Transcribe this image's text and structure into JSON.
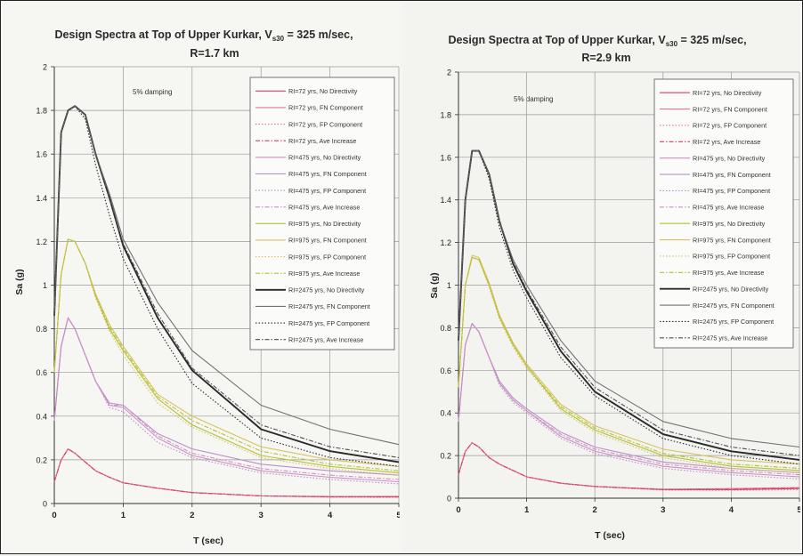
{
  "charts": [
    {
      "title_main": "Design  Spectra at Top of Upper Kurkar, V",
      "title_sub": "s30",
      "title_tail": " = 325 m/sec,",
      "title_line2": "R=1.7 km",
      "annotation": "5% damping",
      "xlabel": "T (sec)",
      "ylabel": "Sa (g)",
      "xticks": [
        "0",
        "1",
        "2",
        "3",
        "4",
        "5"
      ],
      "yticks": [
        "0",
        "0.2",
        "0.4",
        "0.6",
        "0.8",
        "1",
        "1.2",
        "1.4",
        "1.6",
        "1.8",
        "2"
      ]
    },
    {
      "title_main": "Design  Spectra at Top of Upper Kurkar, V",
      "title_sub": "s30",
      "title_tail": " = 325 m/sec,",
      "title_line2": "R=2.9 km",
      "annotation": "5% damping",
      "xlabel": "T (sec)",
      "ylabel": "Sa (g)",
      "xticks": [
        "0",
        "1",
        "2",
        "3",
        "4",
        "5"
      ],
      "yticks": [
        "0",
        "0.2",
        "0.4",
        "0.6",
        "0.8",
        "1",
        "1.2",
        "1.4",
        "1.6",
        "1.8",
        "2"
      ]
    }
  ],
  "chart_data": [
    {
      "type": "line",
      "title": "Design Spectra at Top of Upper Kurkar, Vs30 = 325 m/sec, R=1.7 km",
      "xlabel": "T (sec)",
      "ylabel": "Sa (g)",
      "xlim": [
        0,
        5
      ],
      "ylim": [
        0,
        2
      ],
      "grid": true,
      "legend_position": "top-right",
      "x": [
        0,
        0.1,
        0.2,
        0.3,
        0.45,
        0.6,
        0.8,
        1,
        1.5,
        2,
        3,
        4,
        5
      ],
      "series": [
        {
          "name": "RI=72 yrs, No Directivity",
          "color": "#d6406a",
          "dash": "solid",
          "values": [
            0.1,
            0.2,
            0.25,
            0.23,
            0.19,
            0.15,
            0.12,
            0.095,
            0.07,
            0.05,
            0.035,
            0.03,
            0.03
          ]
        },
        {
          "name": "RI=72 yrs, FN Component",
          "color": "#e07890",
          "dash": "solid",
          "values": [
            0.1,
            0.2,
            0.25,
            0.23,
            0.19,
            0.15,
            0.12,
            0.095,
            0.07,
            0.05,
            0.035,
            0.032,
            0.033
          ]
        },
        {
          "name": "RI=72 yrs, FP Component",
          "color": "#e07890",
          "dash": "dot",
          "values": [
            0.1,
            0.2,
            0.25,
            0.23,
            0.19,
            0.15,
            0.12,
            0.095,
            0.07,
            0.05,
            0.035,
            0.029,
            0.028
          ]
        },
        {
          "name": "RI=72 yrs, Ave Increase",
          "color": "#d6406a",
          "dash": "dashdot",
          "values": [
            0.1,
            0.2,
            0.25,
            0.23,
            0.19,
            0.15,
            0.12,
            0.095,
            0.07,
            0.05,
            0.035,
            0.031,
            0.03
          ]
        },
        {
          "name": "RI=475 yrs, No Directivity",
          "color": "#cf8fc4",
          "dash": "solid",
          "values": [
            0.38,
            0.72,
            0.85,
            0.8,
            0.68,
            0.56,
            0.45,
            0.44,
            0.3,
            0.22,
            0.15,
            0.12,
            0.1
          ]
        },
        {
          "name": "RI=475 yrs, FN Component",
          "color": "#ba8fc8",
          "dash": "solid",
          "values": [
            0.38,
            0.72,
            0.85,
            0.8,
            0.68,
            0.56,
            0.46,
            0.45,
            0.32,
            0.25,
            0.18,
            0.15,
            0.13
          ]
        },
        {
          "name": "RI=475 yrs, FP Component",
          "color": "#ba8fc8",
          "dash": "dot",
          "values": [
            0.38,
            0.72,
            0.85,
            0.8,
            0.68,
            0.56,
            0.44,
            0.42,
            0.28,
            0.21,
            0.14,
            0.11,
            0.09
          ]
        },
        {
          "name": "RI=475 yrs, Ave Increase",
          "color": "#cf8fc4",
          "dash": "dashdot",
          "values": [
            0.38,
            0.72,
            0.85,
            0.8,
            0.68,
            0.56,
            0.45,
            0.45,
            0.31,
            0.23,
            0.16,
            0.13,
            0.11
          ]
        },
        {
          "name": "RI=975 yrs, No Directivity",
          "color": "#b3c232",
          "dash": "solid",
          "values": [
            0.6,
            1.05,
            1.21,
            1.2,
            1.1,
            0.95,
            0.8,
            0.7,
            0.48,
            0.36,
            0.22,
            0.17,
            0.14
          ]
        },
        {
          "name": "RI=975 yrs, FN Component",
          "color": "#d9c25c",
          "dash": "solid",
          "values": [
            0.6,
            1.05,
            1.21,
            1.2,
            1.1,
            0.96,
            0.82,
            0.72,
            0.5,
            0.4,
            0.26,
            0.2,
            0.17
          ]
        },
        {
          "name": "RI=975 yrs, FP Component",
          "color": "#d9c25c",
          "dash": "dot",
          "values": [
            0.6,
            1.05,
            1.21,
            1.2,
            1.1,
            0.94,
            0.79,
            0.68,
            0.46,
            0.35,
            0.21,
            0.16,
            0.13
          ]
        },
        {
          "name": "RI=975 yrs, Ave Increase",
          "color": "#b3c232",
          "dash": "dashdot",
          "values": [
            0.6,
            1.05,
            1.21,
            1.2,
            1.1,
            0.95,
            0.81,
            0.71,
            0.49,
            0.38,
            0.24,
            0.18,
            0.15
          ]
        },
        {
          "name": "RI=2475 yrs, No Directivity",
          "color": "#2a2a2a",
          "dash": "solid",
          "values": [
            0.86,
            1.7,
            1.8,
            1.82,
            1.78,
            1.6,
            1.4,
            1.18,
            0.85,
            0.61,
            0.34,
            0.24,
            0.19
          ]
        },
        {
          "name": "RI=2475 yrs, FN Component",
          "color": "#707070",
          "dash": "solid",
          "values": [
            0.86,
            1.7,
            1.8,
            1.82,
            1.78,
            1.6,
            1.42,
            1.21,
            0.92,
            0.7,
            0.45,
            0.34,
            0.27
          ]
        },
        {
          "name": "RI=2475 yrs, FP Component",
          "color": "#2a2a2a",
          "dash": "dot",
          "values": [
            0.86,
            1.7,
            1.8,
            1.82,
            1.76,
            1.55,
            1.32,
            1.12,
            0.8,
            0.55,
            0.3,
            0.21,
            0.17
          ]
        },
        {
          "name": "RI=2475 yrs, Ave Increase",
          "color": "#505050",
          "dash": "dashdot",
          "values": [
            0.86,
            1.7,
            1.8,
            1.82,
            1.78,
            1.6,
            1.4,
            1.19,
            0.87,
            0.62,
            0.36,
            0.26,
            0.21
          ]
        }
      ]
    },
    {
      "type": "line",
      "title": "Design Spectra at Top of Upper Kurkar, Vs30 = 325 m/sec, R=2.9 km",
      "xlabel": "T (sec)",
      "ylabel": "Sa (g)",
      "xlim": [
        0,
        5
      ],
      "ylim": [
        0,
        2
      ],
      "grid": true,
      "legend_position": "top-right",
      "x": [
        0,
        0.1,
        0.2,
        0.3,
        0.45,
        0.6,
        0.8,
        1,
        1.5,
        2,
        3,
        4,
        5
      ],
      "series": [
        {
          "name": "RI=72 yrs, No Directivity",
          "color": "#d6406a",
          "dash": "solid",
          "values": [
            0.11,
            0.22,
            0.26,
            0.24,
            0.19,
            0.16,
            0.13,
            0.1,
            0.07,
            0.055,
            0.04,
            0.04,
            0.045
          ]
        },
        {
          "name": "RI=72 yrs, FN Component",
          "color": "#e07890",
          "dash": "solid",
          "values": [
            0.11,
            0.22,
            0.26,
            0.24,
            0.19,
            0.16,
            0.13,
            0.1,
            0.07,
            0.055,
            0.042,
            0.045,
            0.05
          ]
        },
        {
          "name": "RI=72 yrs, FP Component",
          "color": "#e07890",
          "dash": "dot",
          "values": [
            0.11,
            0.22,
            0.26,
            0.24,
            0.19,
            0.16,
            0.13,
            0.1,
            0.07,
            0.054,
            0.038,
            0.037,
            0.04
          ]
        },
        {
          "name": "RI=72 yrs, Ave Increase",
          "color": "#d6406a",
          "dash": "dashdot",
          "values": [
            0.11,
            0.22,
            0.26,
            0.24,
            0.19,
            0.16,
            0.13,
            0.1,
            0.07,
            0.055,
            0.041,
            0.042,
            0.047
          ]
        },
        {
          "name": "RI=475 yrs, No Directivity",
          "color": "#cf8fc4",
          "dash": "solid",
          "values": [
            0.36,
            0.72,
            0.82,
            0.78,
            0.66,
            0.54,
            0.46,
            0.41,
            0.29,
            0.22,
            0.15,
            0.12,
            0.1
          ]
        },
        {
          "name": "RI=475 yrs, FN Component",
          "color": "#ba8fc8",
          "dash": "solid",
          "values": [
            0.36,
            0.72,
            0.82,
            0.78,
            0.66,
            0.55,
            0.47,
            0.42,
            0.31,
            0.24,
            0.17,
            0.14,
            0.12
          ]
        },
        {
          "name": "RI=475 yrs, FP Component",
          "color": "#ba8fc8",
          "dash": "dot",
          "values": [
            0.36,
            0.72,
            0.82,
            0.78,
            0.66,
            0.53,
            0.45,
            0.4,
            0.28,
            0.21,
            0.14,
            0.11,
            0.09
          ]
        },
        {
          "name": "RI=475 yrs, Ave Increase",
          "color": "#cf8fc4",
          "dash": "dashdot",
          "values": [
            0.36,
            0.72,
            0.82,
            0.78,
            0.66,
            0.54,
            0.46,
            0.41,
            0.3,
            0.23,
            0.16,
            0.13,
            0.11
          ]
        },
        {
          "name": "RI=975 yrs, No Directivity",
          "color": "#b3c232",
          "dash": "solid",
          "values": [
            0.52,
            1.0,
            1.13,
            1.12,
            1.0,
            0.85,
            0.72,
            0.62,
            0.42,
            0.32,
            0.2,
            0.15,
            0.13
          ]
        },
        {
          "name": "RI=975 yrs, FN Component",
          "color": "#d9c25c",
          "dash": "solid",
          "values": [
            0.52,
            1.0,
            1.14,
            1.13,
            1.01,
            0.86,
            0.73,
            0.63,
            0.44,
            0.34,
            0.23,
            0.18,
            0.16
          ]
        },
        {
          "name": "RI=975 yrs, FP Component",
          "color": "#d9c25c",
          "dash": "dot",
          "values": [
            0.52,
            1.0,
            1.13,
            1.12,
            0.99,
            0.84,
            0.71,
            0.61,
            0.41,
            0.31,
            0.19,
            0.14,
            0.12
          ]
        },
        {
          "name": "RI=975 yrs, Ave Increase",
          "color": "#b3c232",
          "dash": "dashdot",
          "values": [
            0.52,
            1.0,
            1.13,
            1.12,
            1.0,
            0.85,
            0.72,
            0.62,
            0.43,
            0.33,
            0.21,
            0.16,
            0.14
          ]
        },
        {
          "name": "RI=2475 yrs, No Directivity",
          "color": "#2a2a2a",
          "dash": "solid",
          "values": [
            0.74,
            1.4,
            1.63,
            1.63,
            1.52,
            1.3,
            1.1,
            0.97,
            0.69,
            0.5,
            0.3,
            0.22,
            0.18
          ]
        },
        {
          "name": "RI=2475 yrs, FN Component",
          "color": "#707070",
          "dash": "solid",
          "values": [
            0.74,
            1.4,
            1.63,
            1.63,
            1.52,
            1.3,
            1.12,
            1.0,
            0.74,
            0.55,
            0.36,
            0.28,
            0.24
          ]
        },
        {
          "name": "RI=2475 yrs, FP Component",
          "color": "#2a2a2a",
          "dash": "dot",
          "values": [
            0.74,
            1.4,
            1.63,
            1.63,
            1.5,
            1.27,
            1.07,
            0.94,
            0.66,
            0.48,
            0.28,
            0.2,
            0.16
          ]
        },
        {
          "name": "RI=2475 yrs, Ave Increase",
          "color": "#505050",
          "dash": "dashdot",
          "values": [
            0.74,
            1.4,
            1.63,
            1.63,
            1.52,
            1.3,
            1.11,
            0.98,
            0.71,
            0.52,
            0.32,
            0.24,
            0.2
          ]
        }
      ]
    }
  ]
}
